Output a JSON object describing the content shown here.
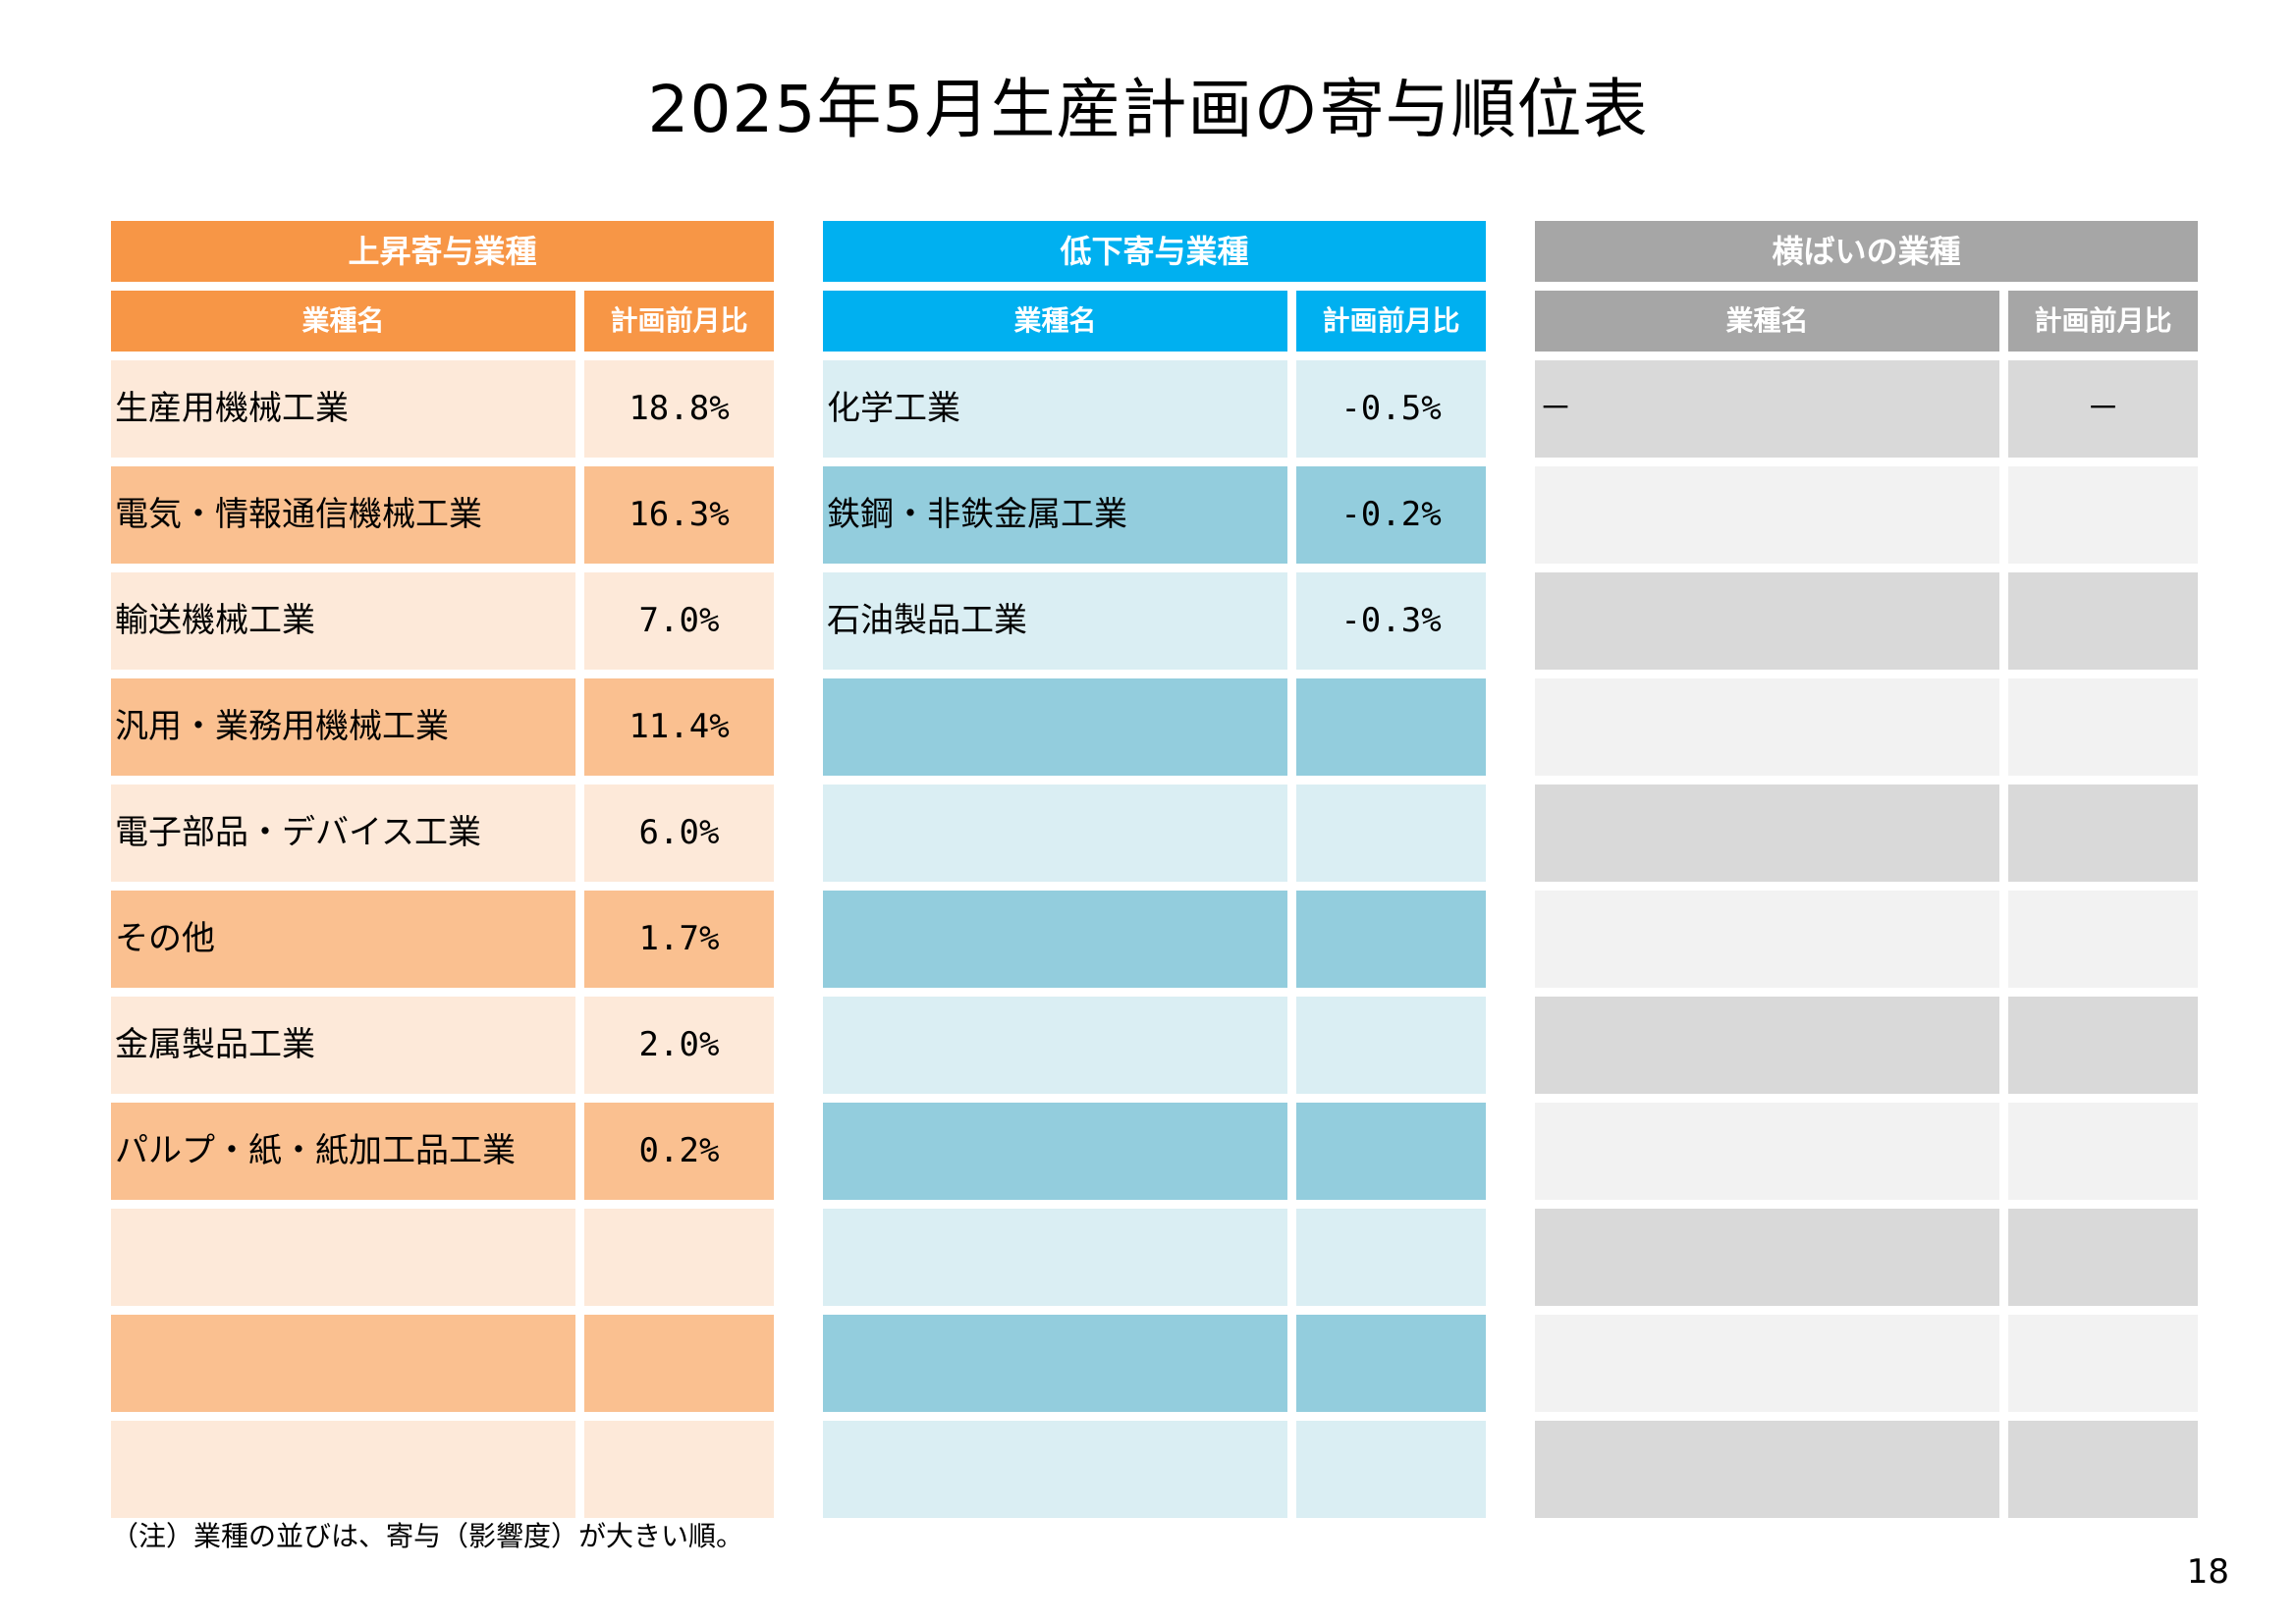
{
  "title": "2025年5月生産計画の寄与順位表",
  "col_headers": {
    "name": "業種名",
    "value": "計画前月比"
  },
  "panels": [
    {
      "id": "up",
      "header": "上昇寄与業種",
      "colors": {
        "header": "#F79646",
        "odd": "#FDE9D9",
        "even": "#FAC090"
      },
      "rows": [
        {
          "name": "生産用機械工業",
          "value": "18.8%"
        },
        {
          "name": "電気・情報通信機械工業",
          "value": "16.3%"
        },
        {
          "name": "輸送機械工業",
          "value": "7.0%"
        },
        {
          "name": "汎用・業務用機械工業",
          "value": "11.4%"
        },
        {
          "name": "電子部品・デバイス工業",
          "value": "6.0%"
        },
        {
          "name": "その他",
          "value": "1.7%"
        },
        {
          "name": "金属製品工業",
          "value": "2.0%"
        },
        {
          "name": "パルプ・紙・紙加工品工業",
          "value": "0.2%"
        },
        {
          "name": "",
          "value": ""
        },
        {
          "name": "",
          "value": ""
        },
        {
          "name": "",
          "value": ""
        }
      ]
    },
    {
      "id": "down",
      "header": "低下寄与業種",
      "colors": {
        "header": "#00B0F0",
        "odd": "#DAEEF3",
        "even": "#93CDDD"
      },
      "rows": [
        {
          "name": "化学工業",
          "value": "-0.5%"
        },
        {
          "name": "鉄鋼・非鉄金属工業",
          "value": "-0.2%"
        },
        {
          "name": "石油製品工業",
          "value": "-0.3%"
        },
        {
          "name": "",
          "value": ""
        },
        {
          "name": "",
          "value": ""
        },
        {
          "name": "",
          "value": ""
        },
        {
          "name": "",
          "value": ""
        },
        {
          "name": "",
          "value": ""
        },
        {
          "name": "",
          "value": ""
        },
        {
          "name": "",
          "value": ""
        },
        {
          "name": "",
          "value": ""
        }
      ]
    },
    {
      "id": "flat",
      "header": "横ばいの業種",
      "colors": {
        "header": "#A6A6A6",
        "odd": "#D9D9D9",
        "even": "#F2F2F2"
      },
      "rows": [
        {
          "name": "－",
          "value": "－"
        },
        {
          "name": "",
          "value": ""
        },
        {
          "name": "",
          "value": ""
        },
        {
          "name": "",
          "value": ""
        },
        {
          "name": "",
          "value": ""
        },
        {
          "name": "",
          "value": ""
        },
        {
          "name": "",
          "value": ""
        },
        {
          "name": "",
          "value": ""
        },
        {
          "name": "",
          "value": ""
        },
        {
          "name": "",
          "value": ""
        },
        {
          "name": "",
          "value": ""
        }
      ]
    }
  ],
  "note": "（注）業種の並びは、寄与（影響度）が大きい順。",
  "page_number": "18"
}
